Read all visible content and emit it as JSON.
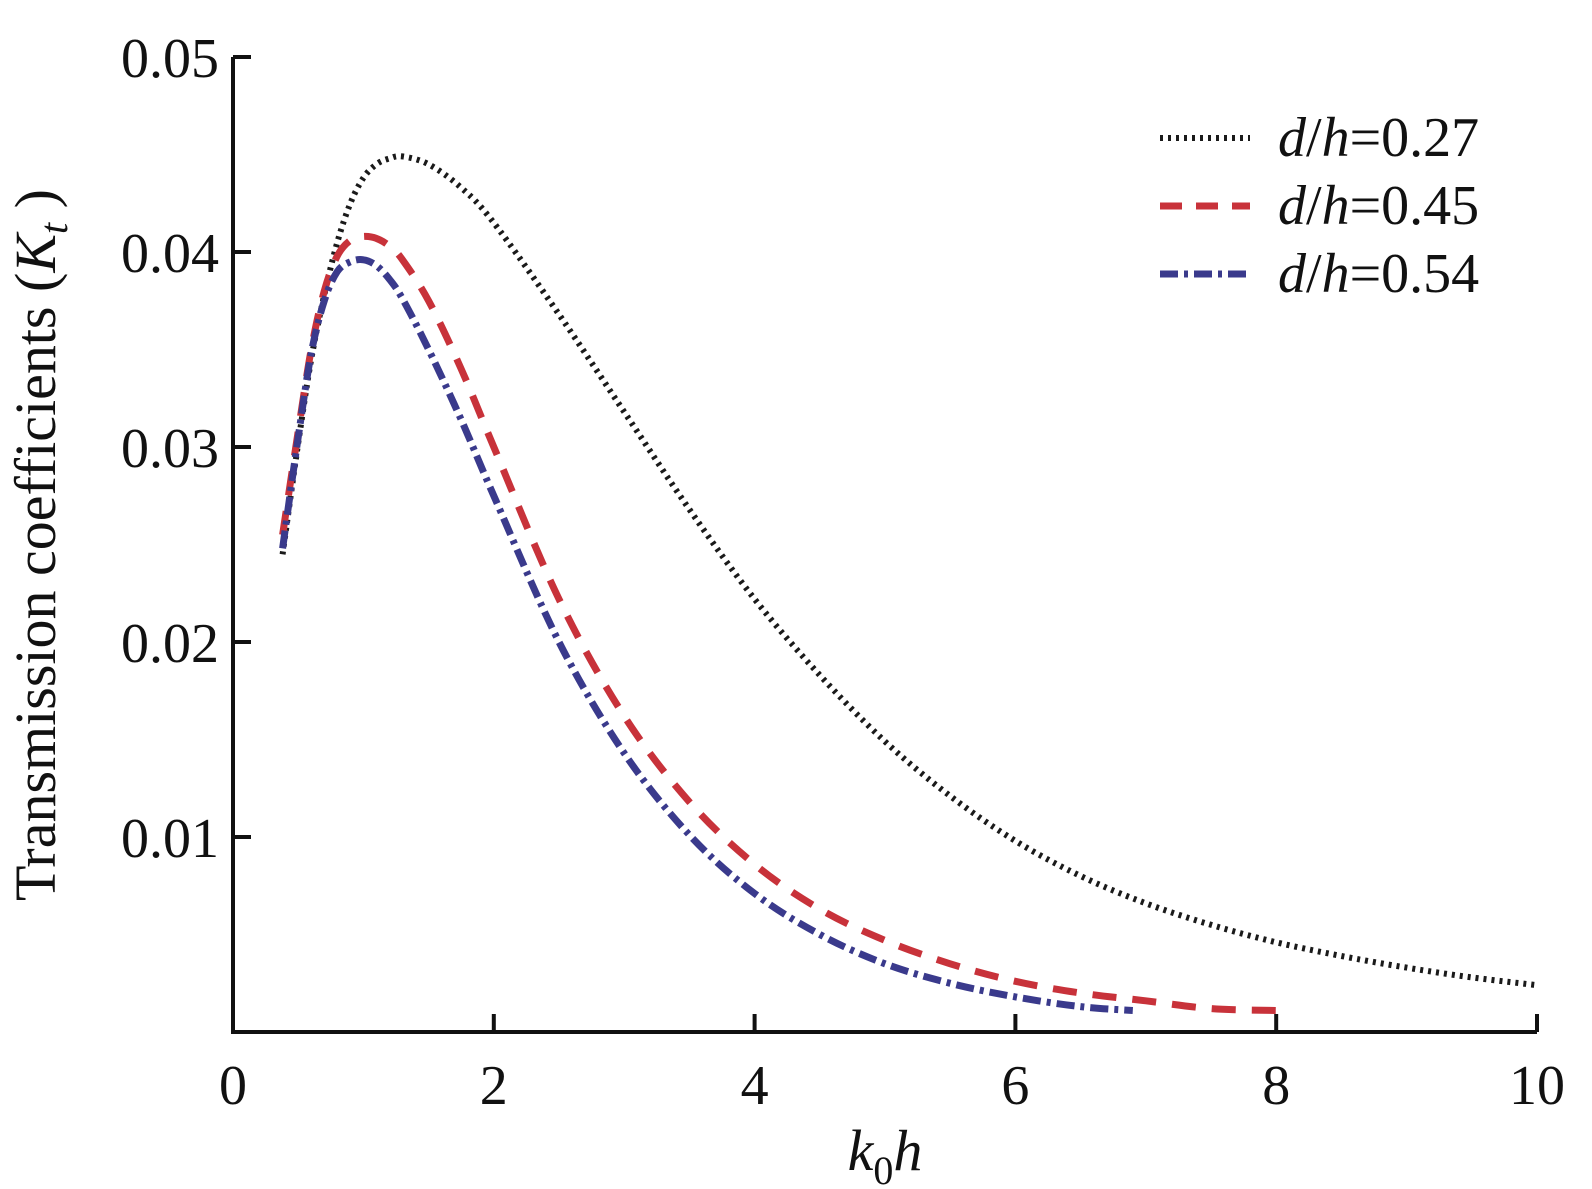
{
  "chart_data": {
    "type": "line",
    "xlabel": "k₀h",
    "ylabel": "Transmission coefficients (Kₜ )",
    "xlim": [
      0,
      10
    ],
    "ylim": [
      0,
      0.05
    ],
    "grid": false,
    "legend_position": "top-right",
    "x_ticks": [
      "0",
      "2",
      "4",
      "6",
      "8",
      "10"
    ],
    "y_ticks": [
      "0.01",
      "0.02",
      "0.03",
      "0.04",
      "0.05"
    ],
    "series": [
      {
        "name": "d/h = 0.27",
        "color": "#1a1a1a",
        "dash": "dotted",
        "x": [
          0.38,
          0.5,
          0.6,
          0.7,
          0.8,
          0.9,
          1.0,
          1.1,
          1.2,
          1.3,
          1.5,
          1.75,
          2.0,
          2.5,
          3.0,
          3.5,
          4.0,
          4.5,
          5.0,
          5.5,
          6.0,
          6.5,
          7.0,
          7.5,
          8.0,
          8.5,
          9.0,
          9.5,
          10.0
        ],
        "y": [
          0.0245,
          0.0302,
          0.0345,
          0.0378,
          0.0405,
          0.0425,
          0.0438,
          0.0445,
          0.0448,
          0.0449,
          0.0445,
          0.0433,
          0.0415,
          0.0368,
          0.0318,
          0.0268,
          0.0222,
          0.0183,
          0.0149,
          0.0121,
          0.0098,
          0.008,
          0.0066,
          0.0055,
          0.0046,
          0.0039,
          0.0033,
          0.0028,
          0.0024
        ]
      },
      {
        "name": "d/h = 0.45",
        "color": "#c8323a",
        "dash": "dashed",
        "x": [
          0.38,
          0.5,
          0.6,
          0.7,
          0.8,
          0.9,
          1.0,
          1.1,
          1.2,
          1.3,
          1.5,
          1.75,
          2.0,
          2.5,
          3.0,
          3.5,
          4.0,
          4.5,
          5.0,
          5.5,
          6.0,
          6.5,
          7.0,
          7.5,
          8.0
        ],
        "y": [
          0.0255,
          0.0308,
          0.035,
          0.038,
          0.0398,
          0.0406,
          0.0408,
          0.0407,
          0.0403,
          0.0396,
          0.0375,
          0.034,
          0.03,
          0.0222,
          0.0162,
          0.0118,
          0.0086,
          0.0063,
          0.0047,
          0.0035,
          0.0026,
          0.002,
          0.0016,
          0.0012,
          0.0011
        ]
      },
      {
        "name": "d/h = 0.54",
        "color": "#3a3a8c",
        "dash": "dash-dot",
        "x": [
          0.38,
          0.5,
          0.6,
          0.7,
          0.8,
          0.9,
          1.0,
          1.1,
          1.2,
          1.3,
          1.5,
          1.75,
          2.0,
          2.5,
          3.0,
          3.5,
          4.0,
          4.5,
          5.0,
          5.5,
          6.0,
          6.5,
          6.9
        ],
        "y": [
          0.0248,
          0.0305,
          0.0348,
          0.0375,
          0.039,
          0.0395,
          0.0396,
          0.0393,
          0.0386,
          0.0376,
          0.035,
          0.0314,
          0.0275,
          0.02,
          0.0143,
          0.0101,
          0.0071,
          0.005,
          0.0035,
          0.0025,
          0.0018,
          0.0013,
          0.0011
        ]
      }
    ],
    "legend": [
      {
        "label_italic": "d",
        "label_sep": "/",
        "label_italic2": "h",
        "label_value": "=0.27"
      },
      {
        "label_italic": "d",
        "label_sep": "/",
        "label_italic2": "h",
        "label_value": "=0.45"
      },
      {
        "label_italic": "d",
        "label_sep": "/",
        "label_italic2": "h",
        "label_value": "=0.54"
      }
    ]
  },
  "axis_text": {
    "x_main": "k",
    "x_sub": "0",
    "x_tail": "h",
    "y_main": "Transmission coefficients (",
    "y_var": "K",
    "y_sub": "t",
    "y_close": " )"
  }
}
